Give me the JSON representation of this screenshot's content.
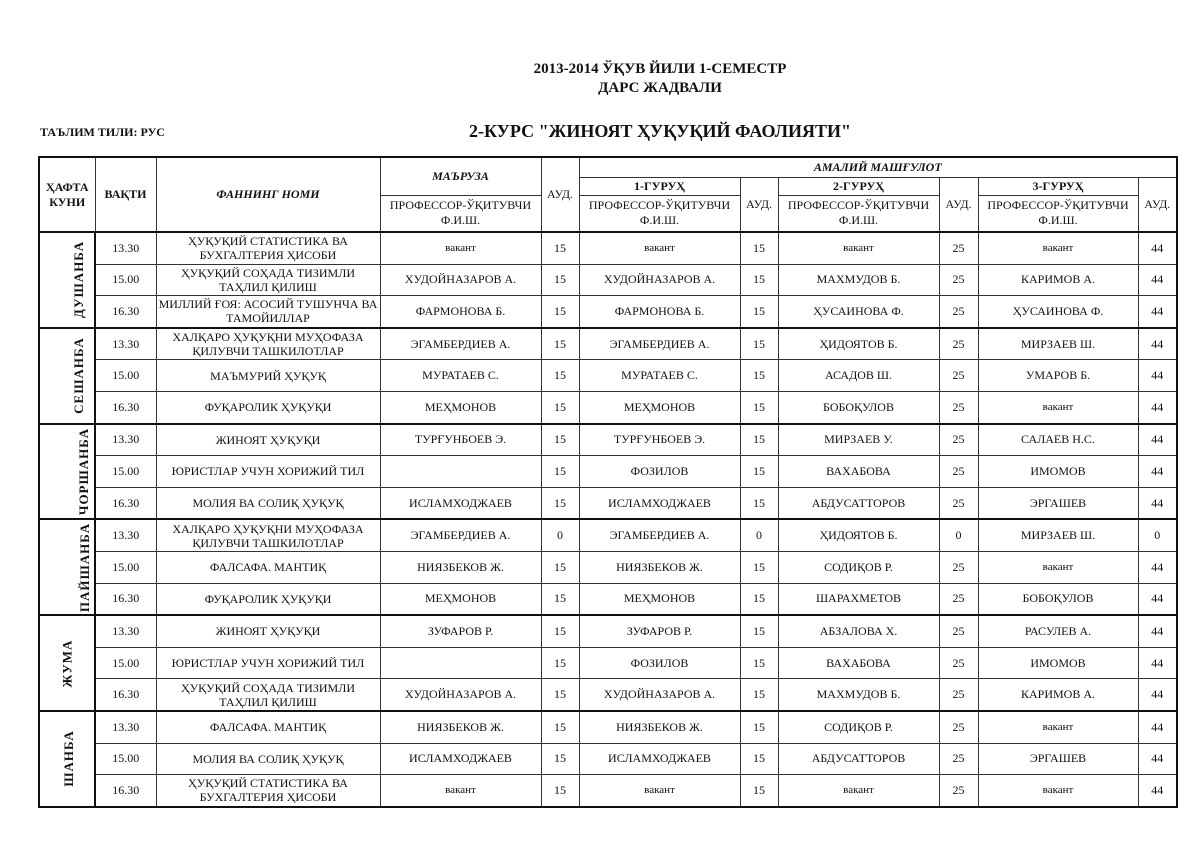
{
  "title": {
    "line1": "2013-2014 ЎҚУВ ЙИЛИ 1-СЕМЕСТР",
    "line2": "ДАРС ЖАДВАЛИ"
  },
  "language": "ТАЪЛИМ ТИЛИ: РУС",
  "course": "2-КУРС \"ЖИНОЯТ ҲУҚУҚИЙ ФАОЛИЯТИ\"",
  "headers": {
    "day": "ҲАФТА КУНИ",
    "time": "ВАҚТИ",
    "subject": "ФАННИНГ НОМИ",
    "lecture": "МАЪРУЗА",
    "teacher": "ПРОФЕССОР-ЎҚИТУВЧИ Ф.И.Ш.",
    "aud": "АУД.",
    "practical": "АМАЛИЙ МАШҒУЛОТ",
    "group1": "1-ГУРУҲ",
    "group2": "2-ГУРУҲ",
    "group3": "3-ГУРУҲ"
  },
  "days": [
    {
      "name": "ДУШАНБА",
      "slots": [
        {
          "time": "13.30",
          "subject": "ҲУҚУҚИЙ СТАТИСТИКА ВА БУХГАЛТЕРИЯ ҲИСОБИ",
          "lecturer": "вакант",
          "lec_aud": "15",
          "g1": "вакант",
          "g1_aud": "15",
          "g2": "вакант",
          "g2_aud": "25",
          "g3": "вакант",
          "g3_aud": "44"
        },
        {
          "time": "15.00",
          "subject": "ҲУҚУҚИЙ СОҲАДА ТИЗИМЛИ ТАҲЛИЛ ҚИЛИШ",
          "lecturer": "ХУДОЙНАЗАРОВ А.",
          "lec_aud": "15",
          "g1": "ХУДОЙНАЗАРОВ А.",
          "g1_aud": "15",
          "g2": "МАХМУДОВ Б.",
          "g2_aud": "25",
          "g3": "КАРИМОВ А.",
          "g3_aud": "44"
        },
        {
          "time": "16.30",
          "subject": "МИЛЛИЙ ҒОЯ: АСОСИЙ ТУШУНЧА ВА ТАМОЙИЛЛАР",
          "lecturer": "ФАРМОНОВА Б.",
          "lec_aud": "15",
          "g1": "ФАРМОНОВА Б.",
          "g1_aud": "15",
          "g2": "ҲУСАИНОВА Ф.",
          "g2_aud": "25",
          "g3": "ҲУСАИНОВА Ф.",
          "g3_aud": "44"
        }
      ]
    },
    {
      "name": "СЕШАНБА",
      "slots": [
        {
          "time": "13.30",
          "subject": "ХАЛҚАРО ҲУҚУҚНИ МУҲОФАЗА ҚИЛУВЧИ ТАШКИЛОТЛАР",
          "lecturer": "ЭГАМБЕРДИЕВ А.",
          "lec_aud": "15",
          "g1": "ЭГАМБЕРДИЕВ А.",
          "g1_aud": "15",
          "g2": "ҲИДОЯТОВ Б.",
          "g2_aud": "25",
          "g3": "МИРЗАЕВ Ш.",
          "g3_aud": "44"
        },
        {
          "time": "15.00",
          "subject": "МАЪМУРИЙ ҲУҚУҚ",
          "lecturer": "МУРАТАЕВ С.",
          "lec_aud": "15",
          "g1": "МУРАТАЕВ С.",
          "g1_aud": "15",
          "g2": "АСАДОВ Ш.",
          "g2_aud": "25",
          "g3": "УМАРОВ Б.",
          "g3_aud": "44"
        },
        {
          "time": "16.30",
          "subject": "ФУҚАРОЛИК ҲУҚУҚИ",
          "lecturer": "МЕҲМОНОВ",
          "lec_aud": "15",
          "g1": "МЕҲМОНОВ",
          "g1_aud": "15",
          "g2": "БОБОҚУЛОВ",
          "g2_aud": "25",
          "g3": "вакант",
          "g3_aud": "44"
        }
      ]
    },
    {
      "name": "ЧОРШАНБА",
      "slots": [
        {
          "time": "13.30",
          "subject": "ЖИНОЯТ ҲУҚУҚИ",
          "lecturer": "ТУРҒУНБОЕВ Э.",
          "lec_aud": "15",
          "g1": "ТУРҒУНБОЕВ Э.",
          "g1_aud": "15",
          "g2": "МИРЗАЕВ У.",
          "g2_aud": "25",
          "g3": "САЛАЕВ Н.С.",
          "g3_aud": "44"
        },
        {
          "time": "15.00",
          "subject": "ЮРИСТЛАР УЧУН ХОРИЖИЙ ТИЛ",
          "lecturer": "",
          "lec_aud": "15",
          "g1": "ФОЗИЛОВ",
          "g1_aud": "15",
          "g2": "ВАХАБОВА",
          "g2_aud": "25",
          "g3": "ИМОМОВ",
          "g3_aud": "44"
        },
        {
          "time": "16.30",
          "subject": "МОЛИЯ ВА СОЛИҚ ҲУҚУҚ",
          "lecturer": "ИСЛАМХОДЖАЕВ",
          "lec_aud": "15",
          "g1": "ИСЛАМХОДЖАЕВ",
          "g1_aud": "15",
          "g2": "АБДУСАТТОРОВ",
          "g2_aud": "25",
          "g3": "ЭРГАШЕВ",
          "g3_aud": "44"
        }
      ]
    },
    {
      "name": "ПАЙШАНБА",
      "slots": [
        {
          "time": "13.30",
          "subject": "ХАЛҚАРО ҲУҚУҚНИ МУҲОФАЗА ҚИЛУВЧИ ТАШКИЛОТЛАР",
          "lecturer": "ЭГАМБЕРДИЕВ А.",
          "lec_aud": "0",
          "g1": "ЭГАМБЕРДИЕВ А.",
          "g1_aud": "0",
          "g2": "ҲИДОЯТОВ Б.",
          "g2_aud": "0",
          "g3": "МИРЗАЕВ Ш.",
          "g3_aud": "0"
        },
        {
          "time": "15.00",
          "subject": "ФАЛСАФА. МАНТИҚ",
          "lecturer": "НИЯЗБЕКОВ Ж.",
          "lec_aud": "15",
          "g1": "НИЯЗБЕКОВ Ж.",
          "g1_aud": "15",
          "g2": "СОДИҚОВ Р.",
          "g2_aud": "25",
          "g3": "вакант",
          "g3_aud": "44"
        },
        {
          "time": "16.30",
          "subject": "ФУҚАРОЛИК ҲУҚУҚИ",
          "lecturer": "МЕҲМОНОВ",
          "lec_aud": "15",
          "g1": "МЕҲМОНОВ",
          "g1_aud": "15",
          "g2": "ШАРАХМЕТОВ",
          "g2_aud": "25",
          "g3": "БОБОҚУЛОВ",
          "g3_aud": "44"
        }
      ]
    },
    {
      "name": "ЖУМА",
      "slots": [
        {
          "time": "13.30",
          "subject": "ЖИНОЯТ ҲУҚУҚИ",
          "lecturer": "ЗУФАРОВ Р.",
          "lec_aud": "15",
          "g1": "ЗУФАРОВ Р.",
          "g1_aud": "15",
          "g2": "АБЗАЛОВА Х.",
          "g2_aud": "25",
          "g3": "РАСУЛЕВ А.",
          "g3_aud": "44"
        },
        {
          "time": "15.00",
          "subject": "ЮРИСТЛАР УЧУН ХОРИЖИЙ ТИЛ",
          "lecturer": "",
          "lec_aud": "15",
          "g1": "ФОЗИЛОВ",
          "g1_aud": "15",
          "g2": "ВАХАБОВА",
          "g2_aud": "25",
          "g3": "ИМОМОВ",
          "g3_aud": "44"
        },
        {
          "time": "16.30",
          "subject": "ҲУҚУҚИЙ СОҲАДА ТИЗИМЛИ ТАҲЛИЛ ҚИЛИШ",
          "lecturer": "ХУДОЙНАЗАРОВ А.",
          "lec_aud": "15",
          "g1": "ХУДОЙНАЗАРОВ А.",
          "g1_aud": "15",
          "g2": "МАХМУДОВ Б.",
          "g2_aud": "25",
          "g3": "КАРИМОВ А.",
          "g3_aud": "44"
        }
      ]
    },
    {
      "name": "ШАНБА",
      "slots": [
        {
          "time": "13.30",
          "subject": "ФАЛСАФА. МАНТИҚ",
          "lecturer": "НИЯЗБЕКОВ Ж.",
          "lec_aud": "15",
          "g1": "НИЯЗБЕКОВ Ж.",
          "g1_aud": "15",
          "g2": "СОДИҚОВ Р.",
          "g2_aud": "25",
          "g3": "вакант",
          "g3_aud": "44"
        },
        {
          "time": "15.00",
          "subject": "МОЛИЯ ВА СОЛИҚ ҲУҚУҚ",
          "lecturer": "ИСЛАМХОДЖАЕВ",
          "lec_aud": "15",
          "g1": "ИСЛАМХОДЖАЕВ",
          "g1_aud": "15",
          "g2": "АБДУСАТТОРОВ",
          "g2_aud": "25",
          "g3": "ЭРГАШЕВ",
          "g3_aud": "44"
        },
        {
          "time": "16.30",
          "subject": "ҲУҚУҚИЙ СТАТИСТИКА ВА БУХГАЛТЕРИЯ ҲИСОБИ",
          "lecturer": "вакант",
          "lec_aud": "15",
          "g1": "вакант",
          "g1_aud": "15",
          "g2": "вакант",
          "g2_aud": "25",
          "g3": "вакант",
          "g3_aud": "44"
        }
      ]
    }
  ]
}
